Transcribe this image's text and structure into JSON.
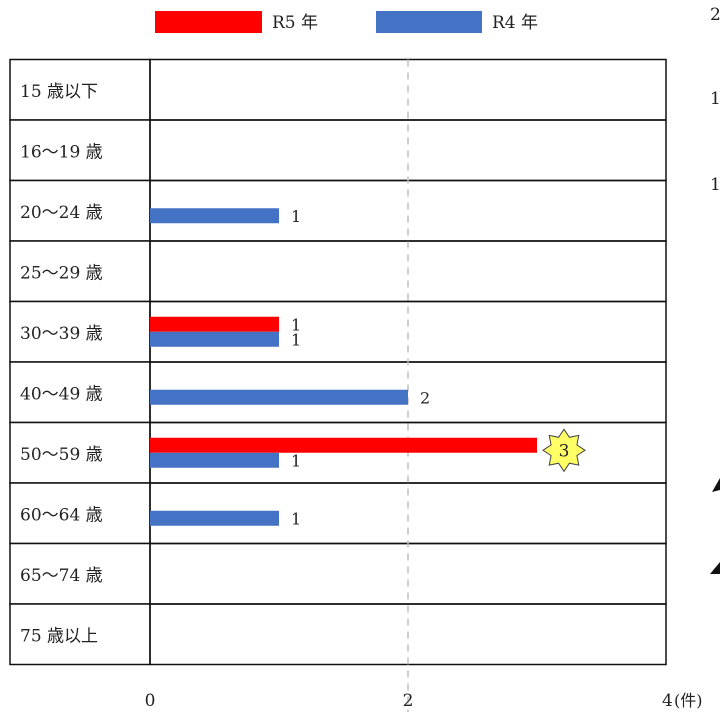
{
  "chart_data": {
    "type": "bar",
    "orientation": "horizontal",
    "categories": [
      "15 歳以下",
      "16〜19 歳",
      "20〜24 歳",
      "25〜29 歳",
      "30〜39 歳",
      "40〜49 歳",
      "50〜59 歳",
      "60〜64 歳",
      "65〜74 歳",
      "75 歳以上"
    ],
    "series": [
      {
        "name": "R5 年",
        "color": "#ff0000",
        "values": [
          0,
          0,
          0,
          0,
          1,
          0,
          3,
          0,
          0,
          0
        ]
      },
      {
        "name": "R4 年",
        "color": "#4472c4",
        "values": [
          0,
          0,
          1,
          0,
          1,
          2,
          1,
          1,
          0,
          0
        ]
      }
    ],
    "xlim": [
      0,
      4
    ],
    "xticks": [
      "0",
      "2",
      "4"
    ],
    "xunit": "(件)",
    "legend_position": "top",
    "gridlines": "dashed-vertical",
    "highlight": {
      "category": "50〜59 歳",
      "series": "R5 年",
      "label": "3",
      "shape": "star",
      "color": "#ffff66"
    },
    "clipped_right_edge_text": [
      "2",
      "1",
      "1"
    ]
  }
}
